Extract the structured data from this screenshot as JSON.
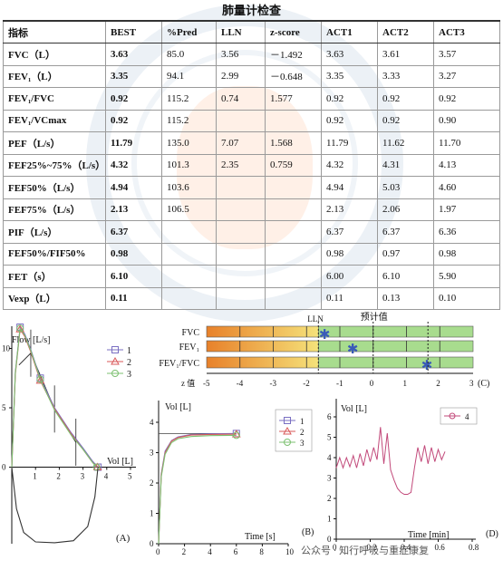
{
  "title": "肺量计检查",
  "table": {
    "headers": [
      "指标",
      "BEST",
      "%Pred",
      "LLN",
      "z-score",
      "ACT1",
      "ACT2",
      "ACT3"
    ],
    "rows": [
      {
        "label": "FVC（L）",
        "best": "3.63",
        "pred": "85.0",
        "lln": "3.56",
        "z": "－1.492",
        "act1": "3.63",
        "act2": "3.61",
        "act3": "3.57"
      },
      {
        "label": "FEV₁（L）",
        "best": "3.35",
        "pred": "94.1",
        "lln": "2.99",
        "z": "－0.648",
        "act1": "3.35",
        "act2": "3.33",
        "act3": "3.27"
      },
      {
        "label": "FEV₁/FVC",
        "best": "0.92",
        "pred": "115.2",
        "lln": "0.74",
        "z": "1.577",
        "act1": "0.92",
        "act2": "0.92",
        "act3": "0.92"
      },
      {
        "label": "FEV₁/VCmax",
        "best": "0.92",
        "pred": "115.2",
        "lln": "",
        "z": "",
        "act1": "0.92",
        "act2": "0.92",
        "act3": "0.90"
      },
      {
        "label": "PEF（L/s）",
        "best": "11.79",
        "pred": "135.0",
        "lln": "7.07",
        "z": "1.568",
        "act1": "11.79",
        "act2": "11.62",
        "act3": "11.70"
      },
      {
        "label": "FEF25%~75%（L/s）",
        "best": "4.32",
        "pred": "101.3",
        "lln": "2.35",
        "z": "0.759",
        "act1": "4.32",
        "act2": "4.31",
        "act3": "4.13"
      },
      {
        "label": "FEF50%（L/s）",
        "best": "4.94",
        "pred": "103.6",
        "lln": "",
        "z": "",
        "act1": "4.94",
        "act2": "5.03",
        "act3": "4.60"
      },
      {
        "label": "FEF75%（L/s）",
        "best": "2.13",
        "pred": "106.5",
        "lln": "",
        "z": "",
        "act1": "2.13",
        "act2": "2.06",
        "act3": "1.97"
      },
      {
        "label": "PIF（L/s）",
        "best": "6.37",
        "pred": "",
        "lln": "",
        "z": "",
        "act1": "6.37",
        "act2": "6.37",
        "act3": "6.36"
      },
      {
        "label": "FEF50%/FIF50%",
        "best": "0.98",
        "pred": "",
        "lln": "",
        "z": "",
        "act1": "0.98",
        "act2": "0.97",
        "act3": "0.98"
      },
      {
        "label": "FET（s）",
        "best": "6.10",
        "pred": "",
        "lln": "",
        "z": "",
        "act1": "6.00",
        "act2": "6.10",
        "act3": "5.90"
      },
      {
        "label": "Vexp（L）",
        "best": "0.11",
        "pred": "",
        "lln": "",
        "z": "",
        "act1": "0.11",
        "act2": "0.13",
        "act3": "0.10"
      }
    ]
  },
  "chart_data": [
    {
      "type": "line",
      "panel": "(A)",
      "xlabel": "Vol [L]",
      "ylabel": "Flow [L/s]",
      "xlim": [
        0,
        5
      ],
      "ylim": [
        -7,
        12
      ],
      "y_ticks": [
        "10",
        "5",
        "0"
      ],
      "x_ticks": [
        "1",
        "2",
        "3",
        "4",
        "5"
      ],
      "legend": [
        "1",
        "2",
        "3"
      ],
      "series": [
        {
          "name": "1",
          "color": "#7a6fc2",
          "x": [
            0,
            0.15,
            0.35,
            0.55,
            0.8,
            1.2,
            1.8,
            2.5,
            3.0,
            3.4,
            3.63
          ],
          "y": [
            0,
            8,
            11.79,
            11.2,
            9.9,
            7.5,
            5.0,
            2.9,
            1.6,
            0.5,
            0
          ]
        },
        {
          "name": "2",
          "color": "#d95a5a",
          "x": [
            0,
            0.15,
            0.35,
            0.55,
            0.8,
            1.2,
            1.8,
            2.5,
            3.0,
            3.4,
            3.61
          ],
          "y": [
            0,
            7.8,
            11.62,
            11.0,
            9.7,
            7.3,
            4.9,
            2.8,
            1.5,
            0.4,
            0
          ]
        },
        {
          "name": "3",
          "color": "#7cc070",
          "x": [
            0,
            0.15,
            0.35,
            0.55,
            0.8,
            1.2,
            1.8,
            2.5,
            3.0,
            3.4,
            3.57
          ],
          "y": [
            0,
            7.9,
            11.7,
            11.1,
            9.8,
            7.4,
            4.8,
            2.7,
            1.5,
            0.4,
            0
          ]
        },
        {
          "name": "inspiratory",
          "color": "#333333",
          "x": [
            0,
            0.2,
            0.5,
            1.0,
            1.8,
            2.6,
            3.2,
            3.5,
            3.63
          ],
          "y": [
            0,
            -3.5,
            -5.5,
            -6.3,
            -6.37,
            -6.2,
            -5.0,
            -2.5,
            0
          ]
        }
      ],
      "predicted_markers": {
        "x": [
          0.8,
          1.8,
          2.7
        ],
        "y": [
          9.6,
          4.9,
          2.1
        ]
      },
      "predicted_flow_volume_points": {
        "x": [
          0.3,
          0.8,
          1.8,
          2.7
        ],
        "y": [
          8.6,
          9.6,
          4.9,
          2.1
        ]
      }
    },
    {
      "type": "bar",
      "panel": "(C)",
      "title": "预计值",
      "marker_label": "LLN",
      "xlabel": "z 值",
      "categories": [
        "FVC",
        "FEV₁",
        "FEV₁/FVC"
      ],
      "values": [
        -1.492,
        -0.648,
        1.577
      ],
      "lln": -1.645,
      "xlim": [
        -5,
        3
      ],
      "x_ticks": [
        "-5",
        "-4",
        "-3",
        "-2",
        "-1",
        "0",
        "1",
        "2",
        "3"
      ],
      "colors": {
        "low": "#e8812a",
        "high": "#f5e27a",
        "normal": "#a8dc8e",
        "marker": "#3a5ab8"
      }
    },
    {
      "type": "line",
      "panel": "(B)",
      "xlabel": "Time [s]",
      "ylabel": "Vol [L]",
      "xlim": [
        0,
        10
      ],
      "ylim": [
        0,
        4.5
      ],
      "x_ticks": [
        "0",
        "2",
        "4",
        "6",
        "8",
        "10"
      ],
      "y_ticks": [
        "4",
        "3",
        "2",
        "1",
        "0"
      ],
      "legend": [
        "1",
        "2",
        "3"
      ],
      "series": [
        {
          "name": "1",
          "x": [
            0,
            0.2,
            0.5,
            1.0,
            1.5,
            2.5,
            4.0,
            6.0
          ],
          "y": [
            0,
            2.3,
            3.05,
            3.4,
            3.52,
            3.6,
            3.62,
            3.63
          ]
        },
        {
          "name": "2",
          "x": [
            0,
            0.2,
            0.5,
            1.0,
            1.5,
            2.5,
            4.0,
            6.0
          ],
          "y": [
            0,
            2.25,
            3.0,
            3.38,
            3.5,
            3.58,
            3.6,
            3.61
          ]
        },
        {
          "name": "3",
          "x": [
            0,
            0.2,
            0.5,
            1.0,
            1.5,
            2.5,
            4.0,
            6.0
          ],
          "y": [
            0,
            2.2,
            2.95,
            3.33,
            3.46,
            3.53,
            3.56,
            3.57
          ]
        }
      ]
    },
    {
      "type": "line",
      "panel": "(D)",
      "xlabel": "Time [min]",
      "ylabel": "Vol [L]",
      "xlim": [
        0,
        0.8
      ],
      "ylim": [
        0,
        6
      ],
      "x_ticks": [
        "0",
        "0.2",
        "0.4",
        "0.6",
        "0.8"
      ],
      "y_ticks": [
        "6",
        "5",
        "4",
        "3",
        "2",
        "1",
        "0"
      ],
      "legend": [
        "4"
      ],
      "series": [
        {
          "name": "4",
          "color": "#c2497a",
          "x": [
            0,
            0.02,
            0.04,
            0.06,
            0.08,
            0.1,
            0.12,
            0.14,
            0.16,
            0.18,
            0.2,
            0.22,
            0.24,
            0.26,
            0.28,
            0.3,
            0.32,
            0.34,
            0.36,
            0.38,
            0.4,
            0.42,
            0.44,
            0.46,
            0.48,
            0.5,
            0.52,
            0.54,
            0.56,
            0.58,
            0.6,
            0.62,
            0.64
          ],
          "y": [
            3.5,
            4.0,
            3.5,
            4.0,
            3.55,
            4.1,
            3.5,
            4.2,
            3.6,
            4.4,
            3.8,
            4.5,
            3.9,
            5.5,
            3.7,
            5.2,
            3.4,
            2.9,
            2.5,
            2.3,
            2.2,
            2.2,
            2.3,
            3.5,
            4.5,
            3.8,
            4.6,
            3.7,
            4.5,
            3.8,
            4.4,
            3.9,
            4.3
          ]
        }
      ]
    }
  ],
  "panel_labels": {
    "a": "(A)",
    "b": "(B)",
    "c": "(C)",
    "d": "(D)"
  },
  "footer_text": "公众号 · 知行呼吸与重症康复"
}
